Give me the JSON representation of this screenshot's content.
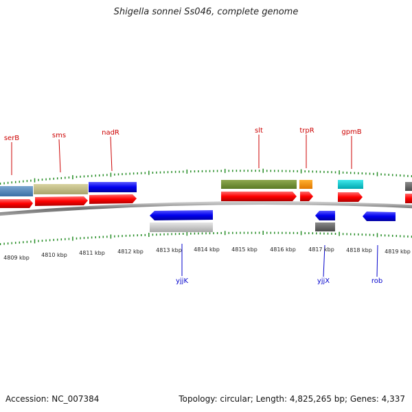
{
  "title": "Shigella sonnei Ss046, complete genome",
  "footer": {
    "accession": "Accession: NC_007384",
    "topology": "Topology: circular; Length: 4,825,265 bp; Genes: 4,337"
  },
  "colors": {
    "label_top": "#cc0000",
    "label_bottom": "#0000cc",
    "tick": "#228b22",
    "backbone": "#7a7a7a"
  },
  "kbp_labels": [
    "4809 kbp",
    "4810 kbp",
    "4811 kbp",
    "4812 kbp",
    "4813 kbp",
    "4814 kbp",
    "4815 kbp",
    "4816 kbp",
    "4817 kbp",
    "4818 kbp",
    "4819 kbp"
  ],
  "gene_labels_top": [
    "serB",
    "sms",
    "nadR",
    "slt",
    "trpR",
    "gpmB"
  ],
  "gene_labels_bottom": [
    "yjjK",
    "yjjX",
    "rob"
  ]
}
